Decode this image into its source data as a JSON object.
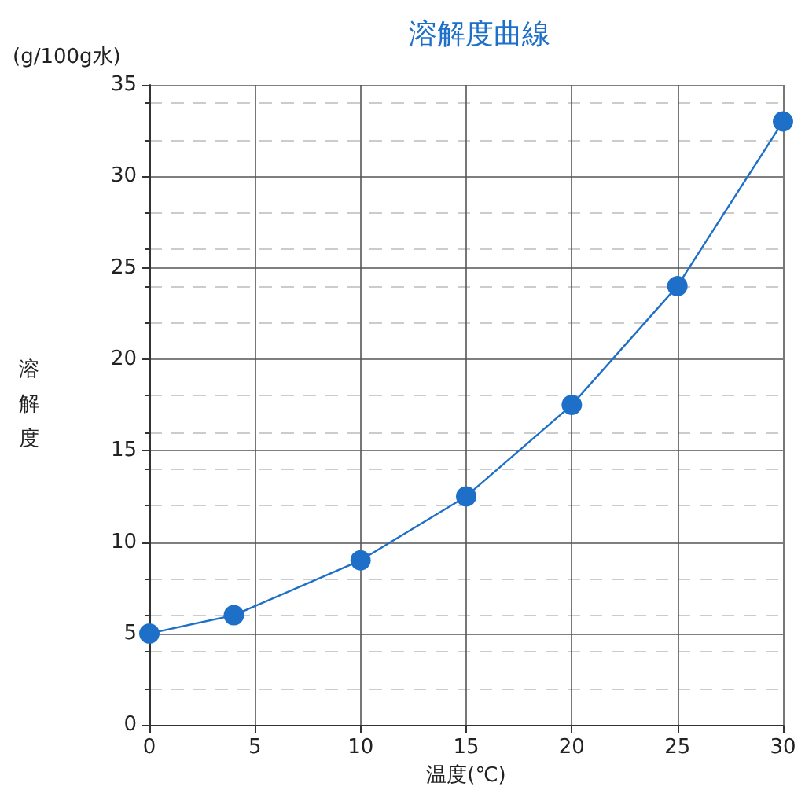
{
  "chart_data": {
    "type": "line",
    "title": "溶解度曲線",
    "xlabel": "温度(℃)",
    "ylabel": "溶解度",
    "annotations": [
      "(g/100g水)"
    ],
    "x": [
      0,
      4,
      10,
      15,
      20,
      25,
      30
    ],
    "series": [
      {
        "color": "#1e6fc8",
        "values": [
          5,
          6,
          9,
          12.5,
          17.5,
          24,
          33
        ]
      }
    ],
    "xlim": [
      0,
      30
    ],
    "xticks": [
      0,
      5,
      10,
      15,
      20,
      25,
      30
    ],
    "ylim": [
      0,
      35
    ],
    "yticks": [
      0,
      5,
      10,
      15,
      20,
      25,
      30,
      35
    ],
    "grid": true,
    "marker": "circle",
    "line_style": "solid"
  }
}
